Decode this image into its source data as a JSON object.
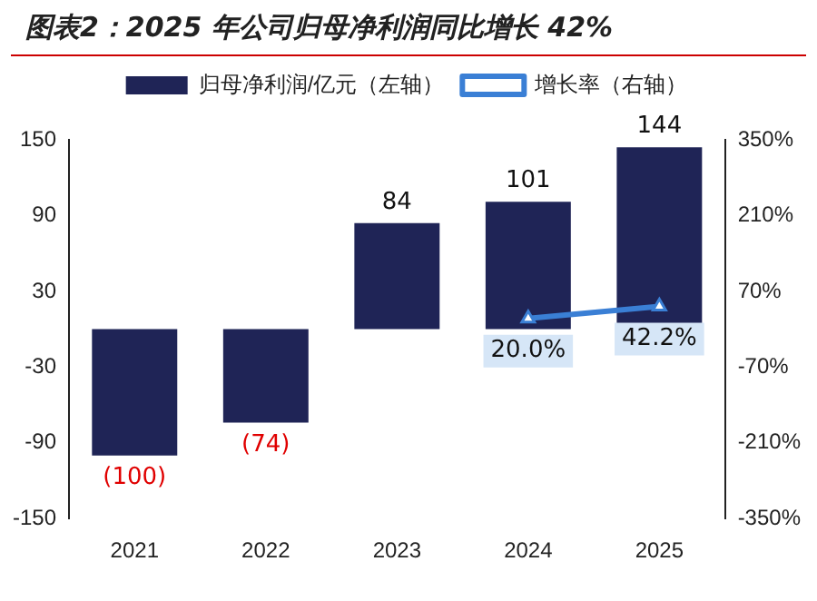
{
  "chart_data": {
    "type": "bar",
    "title": "图表2：2025 年公司归母净利润同比增长 42%",
    "categories": [
      "2021",
      "2022",
      "2023",
      "2024",
      "2025"
    ],
    "series": [
      {
        "name": "归母净利润/亿元（左轴）",
        "color": "#1f2456",
        "values": [
          -100,
          -74,
          84,
          101,
          144
        ],
        "value_labels": [
          "(100)",
          "(74)",
          "84",
          "101",
          "144"
        ]
      },
      {
        "name": "增长率（右轴）",
        "type": "line",
        "axis": "y2",
        "color": "#3a7fd5",
        "values": [
          null,
          null,
          null,
          20.0,
          42.2
        ],
        "value_labels": [
          null,
          null,
          null,
          "20.0%",
          "42.2%"
        ]
      }
    ],
    "ylim": [
      -150,
      150
    ],
    "yticks": [
      -150,
      -90,
      -30,
      30,
      90,
      150
    ],
    "y2lim": [
      -350,
      350
    ],
    "y2ticks": [
      {
        "value": -350,
        "label": "-350%"
      },
      {
        "value": -210,
        "label": "-210%"
      },
      {
        "value": -70,
        "label": "-70%"
      },
      {
        "value": 70,
        "label": "70%"
      },
      {
        "value": 210,
        "label": "210%"
      },
      {
        "value": 350,
        "label": "350%"
      }
    ],
    "legend": "top",
    "marker": "triangle",
    "grid": false
  }
}
